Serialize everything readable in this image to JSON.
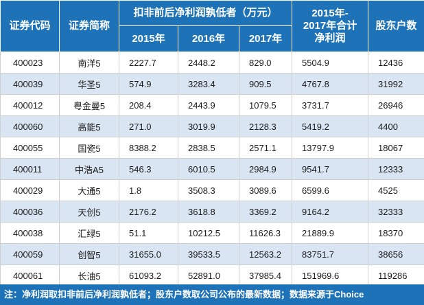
{
  "header": {
    "code": "证券代码",
    "name": "证券简称",
    "profit_group": "扣非前后净利润孰低者（万元）",
    "y2015": "2015年",
    "y2016": "2016年",
    "y2017": "2017年",
    "total": "2015年-\n2017年合计\n净利润",
    "holders": "股东户数"
  },
  "rows": [
    {
      "code": "400023",
      "name": "南洋5",
      "y2015": "2227.7",
      "y2016": "2448.2",
      "y2017": "829.0",
      "total": "5504.9",
      "holders": "12436"
    },
    {
      "code": "400039",
      "name": "华圣5",
      "y2015": "574.9",
      "y2016": "3283.4",
      "y2017": "909.5",
      "total": "4767.8",
      "holders": "31992"
    },
    {
      "code": "400012",
      "name": "粤金曼5",
      "y2015": "208.4",
      "y2016": "2443.9",
      "y2017": "1079.5",
      "total": "3731.7",
      "holders": "26946"
    },
    {
      "code": "400060",
      "name": "高能5",
      "y2015": "271.0",
      "y2016": "3019.9",
      "y2017": "2128.3",
      "total": "5419.2",
      "holders": "4400"
    },
    {
      "code": "400055",
      "name": "国瓷5",
      "y2015": "8388.2",
      "y2016": "2838.5",
      "y2017": "2571.1",
      "total": "13797.9",
      "holders": "18067"
    },
    {
      "code": "400011",
      "name": "中浩A5",
      "y2015": "546.3",
      "y2016": "6010.5",
      "y2017": "2984.9",
      "total": "9541.7",
      "holders": "12333"
    },
    {
      "code": "400029",
      "name": "大通5",
      "y2015": "1.8",
      "y2016": "3508.3",
      "y2017": "3089.6",
      "total": "6599.6",
      "holders": "4525"
    },
    {
      "code": "400036",
      "name": "天创5",
      "y2015": "2176.2",
      "y2016": "3618.8",
      "y2017": "3369.2",
      "total": "9164.2",
      "holders": "32333"
    },
    {
      "code": "400038",
      "name": "汇绿5",
      "y2015": "51.1",
      "y2016": "10212.5",
      "y2017": "11626.3",
      "total": "21889.9",
      "holders": "18370"
    },
    {
      "code": "400059",
      "name": "创智5",
      "y2015": "31655.0",
      "y2016": "39533.5",
      "y2017": "12563.2",
      "total": "83751.7",
      "holders": "38656"
    },
    {
      "code": "400061",
      "name": "长油5",
      "y2015": "61093.2",
      "y2016": "52891.0",
      "y2017": "37985.4",
      "total": "151969.6",
      "holders": "119286"
    }
  ],
  "footer": "注：净利润取扣非前后净利润孰低者；股东户数取公司公布的最新数据；数据来源于Choice"
}
